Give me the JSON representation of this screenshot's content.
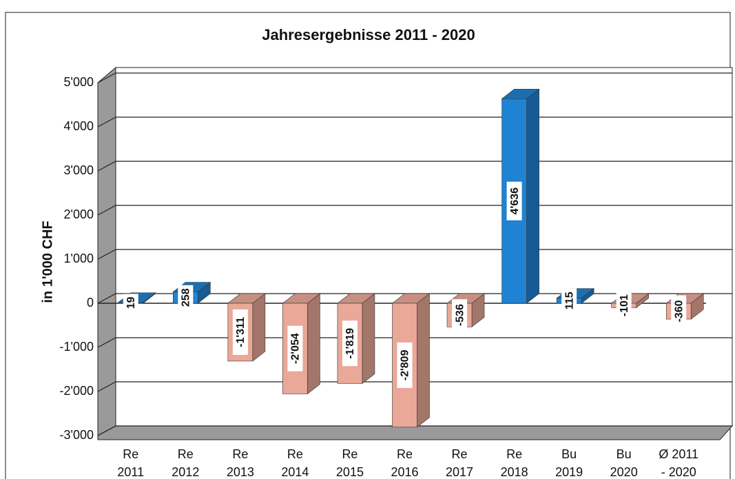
{
  "chart_data": {
    "type": "bar3d",
    "title": "Jahresergebnisse 2011 - 2020",
    "y_label": "in 1'000 CHF",
    "categories": [
      "Re\n2011",
      "Re\n2012",
      "Re\n2013",
      "Re\n2014",
      "Re\n2015",
      "Re\n2016",
      "Re\n2017",
      "Re\n2018",
      "Bu\n2019",
      "Bu\n2020",
      "Ø 2011\n- 2020"
    ],
    "values": [
      19,
      258,
      -1311,
      -2054,
      -1819,
      -2809,
      -536,
      4636,
      115,
      -101,
      -360
    ],
    "value_labels": [
      "19",
      "258",
      "-1'311",
      "-2'054",
      "-1'819",
      "-2'809",
      "-536",
      "4'636",
      "115",
      "-101",
      "-360"
    ],
    "positive_color": "#1f82d2",
    "negative_color": "#e9a898",
    "ylim": [
      -3000,
      5000
    ],
    "yticks": [
      {
        "value": -3000,
        "label": "-3'000"
      },
      {
        "value": -2000,
        "label": "-2'000"
      },
      {
        "value": -1000,
        "label": "-1'000"
      },
      0,
      {
        "value": 1000,
        "label": "1'000"
      },
      {
        "value": 2000,
        "label": "2'000"
      },
      {
        "value": 3000,
        "label": "3'000"
      },
      {
        "value": 4000,
        "label": "4'000"
      },
      {
        "value": 5000,
        "label": "5'000"
      }
    ],
    "grid": true
  }
}
